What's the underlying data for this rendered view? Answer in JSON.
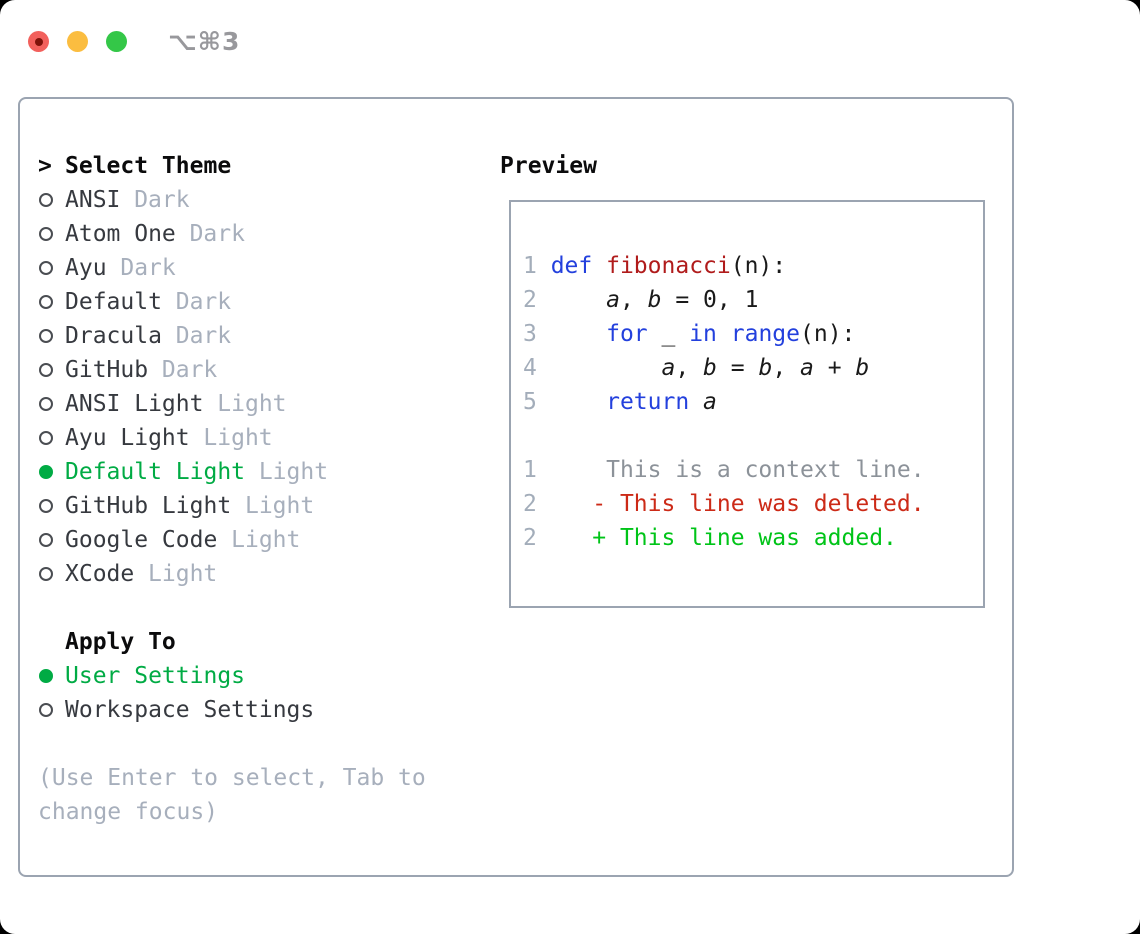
{
  "window": {
    "title": "⌥⌘3"
  },
  "colors": {
    "traffic_red": "#f2605c",
    "traffic_red_dot": "#7e120a",
    "traffic_yellow": "#fbbd40",
    "traffic_green": "#34c748",
    "title_gray": "#98989c",
    "border_gray": "#9ba4b1",
    "header_black": "#0b0b0c",
    "text_dark": "#36393f",
    "muted_gray": "#a7afbc",
    "accent_green": "#00ab44",
    "circle_gray": "#4a4d52",
    "keyword_blue": "#2340dd",
    "function_red": "#b01b1b",
    "code_black": "#1a1a1a",
    "line_number_gray": "#a3adba",
    "context_gray": "#8c9299",
    "deleted_red": "#cc2a17",
    "added_green": "#00c418"
  },
  "theme_selector": {
    "header_marker": ">",
    "header": "Select Theme",
    "themes": [
      {
        "label": "ANSI",
        "variant": "Dark",
        "selected": false
      },
      {
        "label": "Atom One",
        "variant": "Dark",
        "selected": false
      },
      {
        "label": "Ayu",
        "variant": "Dark",
        "selected": false
      },
      {
        "label": "Default",
        "variant": "Dark",
        "selected": false
      },
      {
        "label": "Dracula",
        "variant": "Dark",
        "selected": false
      },
      {
        "label": "GitHub",
        "variant": "Dark",
        "selected": false
      },
      {
        "label": "ANSI Light",
        "variant": "Light",
        "selected": false
      },
      {
        "label": "Ayu Light",
        "variant": "Light",
        "selected": false
      },
      {
        "label": "Default Light",
        "variant": "Light",
        "selected": true
      },
      {
        "label": "GitHub Light",
        "variant": "Light",
        "selected": false
      },
      {
        "label": "Google Code",
        "variant": "Light",
        "selected": false
      },
      {
        "label": "XCode",
        "variant": "Light",
        "selected": false
      }
    ],
    "apply_to": {
      "header": "Apply To",
      "options": [
        {
          "label": "User Settings",
          "selected": true
        },
        {
          "label": "Workspace Settings",
          "selected": false
        }
      ]
    },
    "hint_lines": [
      "(Use Enter to select, Tab to",
      "change focus)"
    ]
  },
  "preview": {
    "header": "Preview",
    "lines": [
      [
        [
          "1 ",
          "ln"
        ],
        [
          "def",
          "kw"
        ],
        [
          " ",
          "pl"
        ],
        [
          "fibonacci",
          "fn"
        ],
        [
          "(n):",
          "pl"
        ]
      ],
      [
        [
          "2 ",
          "ln"
        ],
        [
          "    ",
          "pl"
        ],
        [
          "a",
          "var"
        ],
        [
          ", ",
          "pl"
        ],
        [
          "b",
          "var"
        ],
        [
          " = 0, 1",
          "pl"
        ]
      ],
      [
        [
          "3 ",
          "ln"
        ],
        [
          "    ",
          "pl"
        ],
        [
          "for",
          "kw"
        ],
        [
          " _ ",
          "pl"
        ],
        [
          "in",
          "kw"
        ],
        [
          " ",
          "pl"
        ],
        [
          "range",
          "kw"
        ],
        [
          "(n):",
          "pl"
        ]
      ],
      [
        [
          "4 ",
          "ln"
        ],
        [
          "        ",
          "pl"
        ],
        [
          "a",
          "var"
        ],
        [
          ", ",
          "pl"
        ],
        [
          "b",
          "var"
        ],
        [
          " = ",
          "pl"
        ],
        [
          "b",
          "var"
        ],
        [
          ", ",
          "pl"
        ],
        [
          "a",
          "var"
        ],
        [
          " + ",
          "pl"
        ],
        [
          "b",
          "var"
        ]
      ],
      [
        [
          "5 ",
          "ln"
        ],
        [
          "    ",
          "pl"
        ],
        [
          "return",
          "kw"
        ],
        [
          " ",
          "pl"
        ],
        [
          "a",
          "var"
        ]
      ],
      [],
      [
        [
          "1",
          "ln"
        ],
        [
          "     ",
          "pl"
        ],
        [
          "This is a context line.",
          "ctx"
        ]
      ],
      [
        [
          "2",
          "ln"
        ],
        [
          "    ",
          "pl"
        ],
        [
          "- This line was deleted.",
          "del"
        ]
      ],
      [
        [
          "2",
          "ln"
        ],
        [
          "    ",
          "pl"
        ],
        [
          "+ This line was added.",
          "add"
        ]
      ]
    ]
  }
}
